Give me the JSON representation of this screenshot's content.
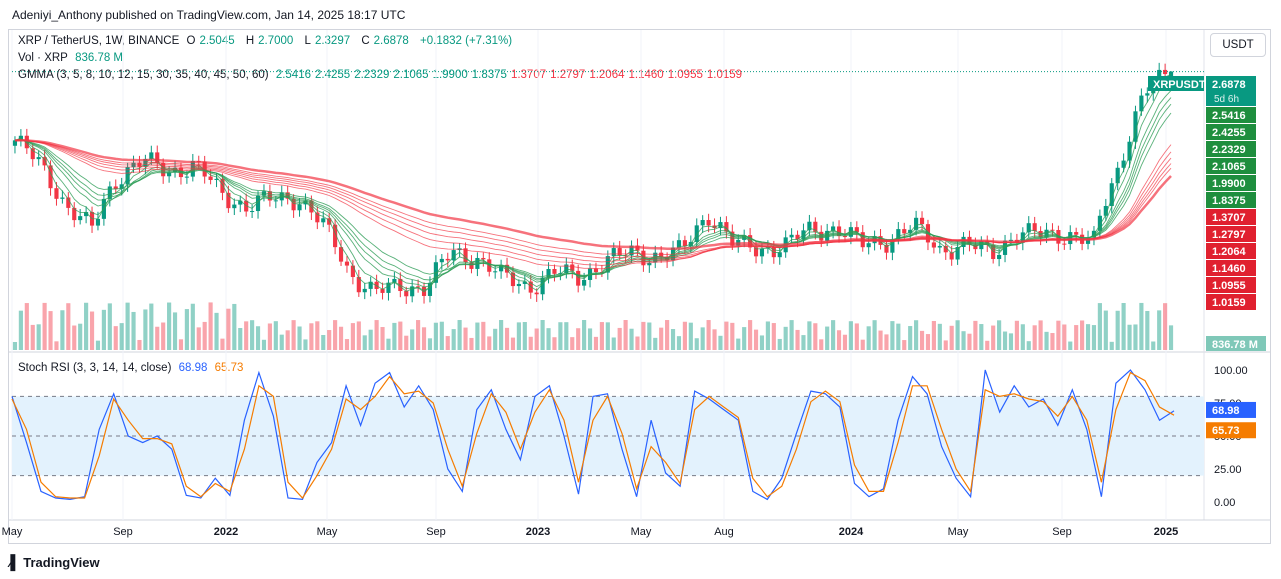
{
  "header": {
    "published": "Adeniyi_Anthony published on TradingView.com, Jan 14, 2025 18:17 UTC"
  },
  "legend": {
    "symbol": "XRP / TetherUS, 1W, BINANCE",
    "o_label": "O",
    "o": "2.5045",
    "h_label": "H",
    "h": "2.7000",
    "l_label": "L",
    "l": "2.3297",
    "c_label": "C",
    "c": "2.6878",
    "change": "+0.1832 (+7.31%)",
    "vol_label": "Vol · XRP",
    "vol": "836.78 M",
    "gmma_label": "GMMA (3, 5, 8, 10, 12, 15, 30, 35, 40, 45, 50, 60)",
    "stoch_label": "Stoch RSI (3, 3, 14, 14, close)",
    "k": "68.98",
    "d": "65.73"
  },
  "currency_button": "USDT",
  "price_tags": {
    "symbol_tag": "XRPUSDT",
    "last": "2.6878",
    "countdown": "5d 6h",
    "gmma_short": [
      "2.5416",
      "2.4255",
      "2.2329",
      "2.1065",
      "1.9900",
      "1.8375"
    ],
    "gmma_long": [
      "1.3707",
      "1.2797",
      "1.2064",
      "1.1460",
      "1.0955",
      "1.0159"
    ],
    "volume": "836.78 M"
  },
  "rsi_axis": [
    "100.00",
    "75.00",
    "50.00",
    "25.00",
    "0.00"
  ],
  "time_axis": [
    "May",
    "Sep",
    "2022",
    "May",
    "Sep",
    "2023",
    "May",
    "Aug",
    "2024",
    "May",
    "Sep",
    "2025"
  ],
  "colors": {
    "up": "#089981",
    "down": "#f23645",
    "k": "#2962ff",
    "d": "#f57c00",
    "gmma_short": "#2e9e58",
    "gmma_long": "#f23645",
    "band": "#e3f2fd"
  },
  "brand": "TradingView",
  "chart_data": [
    {
      "type": "candlestick",
      "title": "XRP / TetherUS, 1W, BINANCE",
      "ylim": [
        0.25,
        3.0
      ],
      "x_ticks": [
        "May",
        "Sep",
        "2022",
        "May",
        "Sep",
        "2023",
        "May",
        "Aug",
        "2024",
        "May",
        "Sep",
        "2025"
      ],
      "ohlc_last": {
        "open": 2.5045,
        "high": 2.7,
        "low": 2.3297,
        "close": 2.6878
      },
      "price_series": [
        [
          "2021-04",
          1.4
        ],
        [
          "2021-05",
          1.1
        ],
        [
          "2021-06",
          0.75
        ],
        [
          "2021-07",
          0.6
        ],
        [
          "2021-08",
          1.0
        ],
        [
          "2021-09",
          1.15
        ],
        [
          "2021-10",
          1.05
        ],
        [
          "2021-11",
          1.1
        ],
        [
          "2021-12",
          0.85
        ],
        [
          "2022-01",
          0.75
        ],
        [
          "2022-02",
          0.8
        ],
        [
          "2022-03",
          0.82
        ],
        [
          "2022-04",
          0.62
        ],
        [
          "2022-05",
          0.4
        ],
        [
          "2022-06",
          0.33
        ],
        [
          "2022-07",
          0.35
        ],
        [
          "2022-08",
          0.35
        ],
        [
          "2022-09",
          0.48
        ],
        [
          "2022-10",
          0.46
        ],
        [
          "2022-11",
          0.38
        ],
        [
          "2022-12",
          0.35
        ],
        [
          "2023-01",
          0.4
        ],
        [
          "2023-02",
          0.38
        ],
        [
          "2023-03",
          0.45
        ],
        [
          "2023-04",
          0.48
        ],
        [
          "2023-05",
          0.47
        ],
        [
          "2023-06",
          0.49
        ],
        [
          "2023-07",
          0.7
        ],
        [
          "2023-08",
          0.52
        ],
        [
          "2023-09",
          0.5
        ],
        [
          "2023-10",
          0.52
        ],
        [
          "2023-11",
          0.6
        ],
        [
          "2023-12",
          0.61
        ],
        [
          "2024-01",
          0.52
        ],
        [
          "2024-02",
          0.55
        ],
        [
          "2024-03",
          0.62
        ],
        [
          "2024-04",
          0.5
        ],
        [
          "2024-05",
          0.52
        ],
        [
          "2024-06",
          0.48
        ],
        [
          "2024-07",
          0.58
        ],
        [
          "2024-08",
          0.57
        ],
        [
          "2024-09",
          0.58
        ],
        [
          "2024-10",
          0.53
        ],
        [
          "2024-11",
          1.1
        ],
        [
          "2024-12",
          2.2
        ],
        [
          "2025-01",
          2.6878
        ]
      ],
      "gmma_short_last": [
        2.5416,
        2.4255,
        2.2329,
        2.1065,
        1.99,
        1.8375
      ],
      "gmma_long_last": [
        1.3707,
        1.2797,
        1.2064,
        1.146,
        1.0955,
        1.0159
      ]
    },
    {
      "type": "bar",
      "title": "Vol · XRP",
      "last": "836.78 M"
    },
    {
      "type": "line",
      "title": "Stoch RSI (3, 3, 14, 14, close)",
      "ylim": [
        0,
        100
      ],
      "bands": [
        20,
        80
      ],
      "series": [
        {
          "name": "K",
          "last": 68.98,
          "values": [
            80,
            45,
            8,
            3,
            2,
            4,
            55,
            82,
            50,
            45,
            50,
            40,
            5,
            3,
            18,
            5,
            62,
            98,
            65,
            3,
            2,
            30,
            45,
            88,
            58,
            90,
            98,
            72,
            88,
            70,
            25,
            8,
            70,
            85,
            55,
            32,
            80,
            88,
            50,
            6,
            80,
            82,
            40,
            4,
            62,
            22,
            12,
            84,
            78,
            70,
            62,
            8,
            2,
            18,
            52,
            84,
            82,
            72,
            14,
            4,
            10,
            62,
            95,
            82,
            42,
            18,
            4,
            100,
            68,
            88,
            72,
            78,
            58,
            85,
            55,
            4,
            90,
            100,
            85,
            62,
            68.98
          ]
        },
        {
          "name": "D",
          "last": 65.73,
          "values": [
            78,
            55,
            15,
            4,
            3,
            3,
            35,
            78,
            62,
            48,
            48,
            44,
            12,
            4,
            14,
            8,
            40,
            88,
            80,
            15,
            3,
            20,
            40,
            78,
            70,
            80,
            95,
            82,
            84,
            75,
            40,
            12,
            52,
            82,
            68,
            40,
            68,
            85,
            62,
            15,
            62,
            80,
            52,
            10,
            42,
            30,
            14,
            70,
            80,
            72,
            64,
            18,
            4,
            12,
            40,
            76,
            84,
            76,
            28,
            8,
            8,
            45,
            88,
            88,
            55,
            25,
            8,
            85,
            80,
            82,
            78,
            76,
            65,
            80,
            62,
            15,
            70,
            98,
            92,
            72,
            65.73
          ]
        }
      ]
    }
  ]
}
